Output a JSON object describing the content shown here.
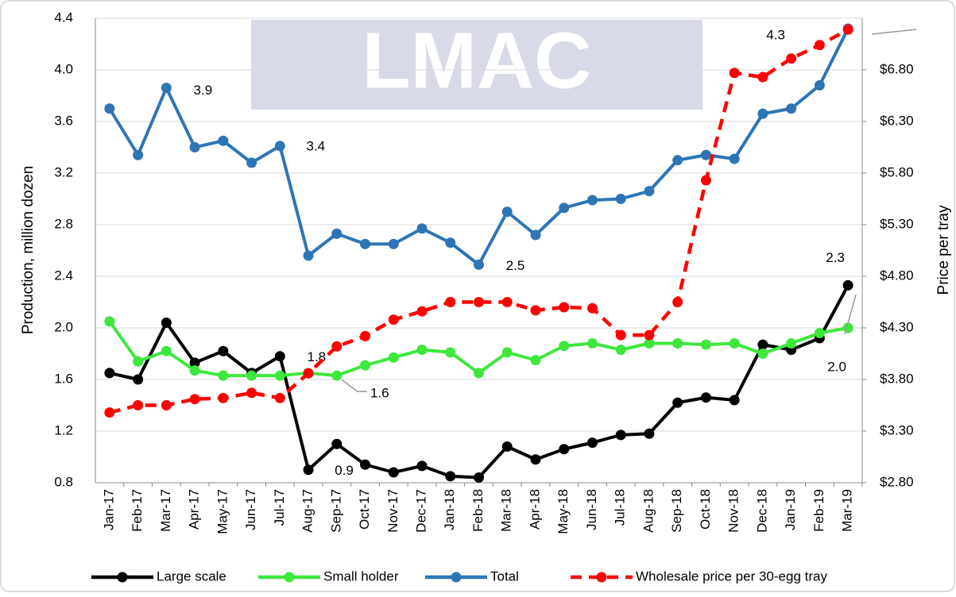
{
  "chart_data": {
    "type": "line",
    "watermark": "LMAC",
    "categories": [
      "Jan-17",
      "Feb-17",
      "Mar-17",
      "Apr-17",
      "May-17",
      "Jun-17",
      "Jul-17",
      "Aug-17",
      "Sep-17",
      "Oct-17",
      "Nov-17",
      "Dec-17",
      "Jan-18",
      "Feb-18",
      "Mar-18",
      "Apr-18",
      "May-18",
      "Jun-18",
      "Jul-18",
      "Aug-18",
      "Sep-18",
      "Oct-18",
      "Nov-18",
      "Dec-18",
      "Jan-19",
      "Feb-19",
      "Mar-19"
    ],
    "y_label": "Production, million dozen",
    "y2_label": "Price per tray",
    "ylim": [
      0.8,
      4.4
    ],
    "yticks": [
      0.8,
      1.2,
      1.6,
      {
        "value": 2.0,
        "label": "2.0"
      },
      2.4,
      2.8,
      3.2,
      3.6,
      {
        "value": 4.0,
        "label": "4.0"
      },
      4.4
    ],
    "y2lim": [
      2.8,
      7.3
    ],
    "y2ticks": [
      {
        "value": 2.8,
        "label": "$2.80"
      },
      {
        "value": 3.3,
        "label": "$3.30"
      },
      {
        "value": 3.8,
        "label": "$3.80"
      },
      {
        "value": 4.3,
        "label": "$4.30"
      },
      {
        "value": 4.8,
        "label": "$4.80"
      },
      {
        "value": 5.3,
        "label": "$5.30"
      },
      {
        "value": 5.8,
        "label": "$5.80"
      },
      {
        "value": 6.3,
        "label": "$6.30"
      },
      {
        "value": 6.8,
        "label": "$6.80"
      }
    ],
    "grid": true,
    "legend": "bottom",
    "series": [
      {
        "name": "Large scale",
        "color": "#000000",
        "values": [
          1.65,
          1.6,
          2.04,
          1.73,
          1.82,
          1.65,
          1.78,
          0.9,
          1.1,
          0.94,
          0.88,
          0.93,
          0.85,
          0.84,
          1.08,
          0.98,
          1.06,
          1.11,
          1.17,
          1.18,
          1.42,
          1.46,
          1.44,
          1.87,
          1.83,
          1.92,
          2.33
        ],
        "value_labels": [
          null,
          null,
          null,
          null,
          null,
          null,
          "1.8",
          "0.9",
          null,
          null,
          null,
          null,
          null,
          null,
          null,
          null,
          null,
          null,
          null,
          null,
          null,
          null,
          null,
          null,
          null,
          null,
          "2.3"
        ]
      },
      {
        "name": "Small holder",
        "color": "#3de83d",
        "values": [
          2.05,
          1.74,
          1.82,
          1.67,
          1.63,
          1.63,
          1.63,
          1.65,
          1.63,
          1.71,
          1.77,
          1.83,
          1.81,
          1.65,
          1.81,
          1.75,
          1.86,
          1.88,
          1.83,
          1.88,
          1.88,
          1.87,
          1.88,
          1.8,
          1.88,
          1.96,
          2.0
        ],
        "value_labels": [
          null,
          null,
          null,
          null,
          null,
          null,
          null,
          null,
          "1.6",
          null,
          null,
          null,
          null,
          null,
          null,
          null,
          null,
          null,
          null,
          null,
          null,
          null,
          null,
          null,
          null,
          null,
          "2.0"
        ]
      },
      {
        "name": "Total",
        "color": "#2e75b6",
        "values": [
          3.7,
          3.34,
          3.86,
          3.4,
          3.45,
          3.28,
          3.41,
          2.56,
          2.73,
          2.65,
          2.65,
          2.77,
          2.66,
          2.49,
          2.9,
          2.72,
          2.93,
          2.99,
          3.0,
          3.06,
          3.3,
          3.34,
          3.31,
          3.66,
          3.7,
          3.88,
          4.32
        ],
        "value_labels": [
          null,
          null,
          "3.9",
          null,
          null,
          null,
          "3.4",
          null,
          null,
          null,
          null,
          null,
          null,
          "2.5",
          null,
          null,
          null,
          null,
          null,
          null,
          null,
          null,
          null,
          null,
          null,
          null,
          "4.3"
        ]
      },
      {
        "name": "Wholesale price per 30-egg tray",
        "color": "#ff0000",
        "axis": "y2",
        "dashed": true,
        "values": [
          3.48,
          3.55,
          3.55,
          3.61,
          3.62,
          3.67,
          3.62,
          3.86,
          4.12,
          4.22,
          4.38,
          4.46,
          4.55,
          4.55,
          4.55,
          4.47,
          4.5,
          4.49,
          4.23,
          4.23,
          4.55,
          5.73,
          6.77,
          6.73,
          6.91,
          7.04,
          7.19
        ]
      }
    ]
  }
}
